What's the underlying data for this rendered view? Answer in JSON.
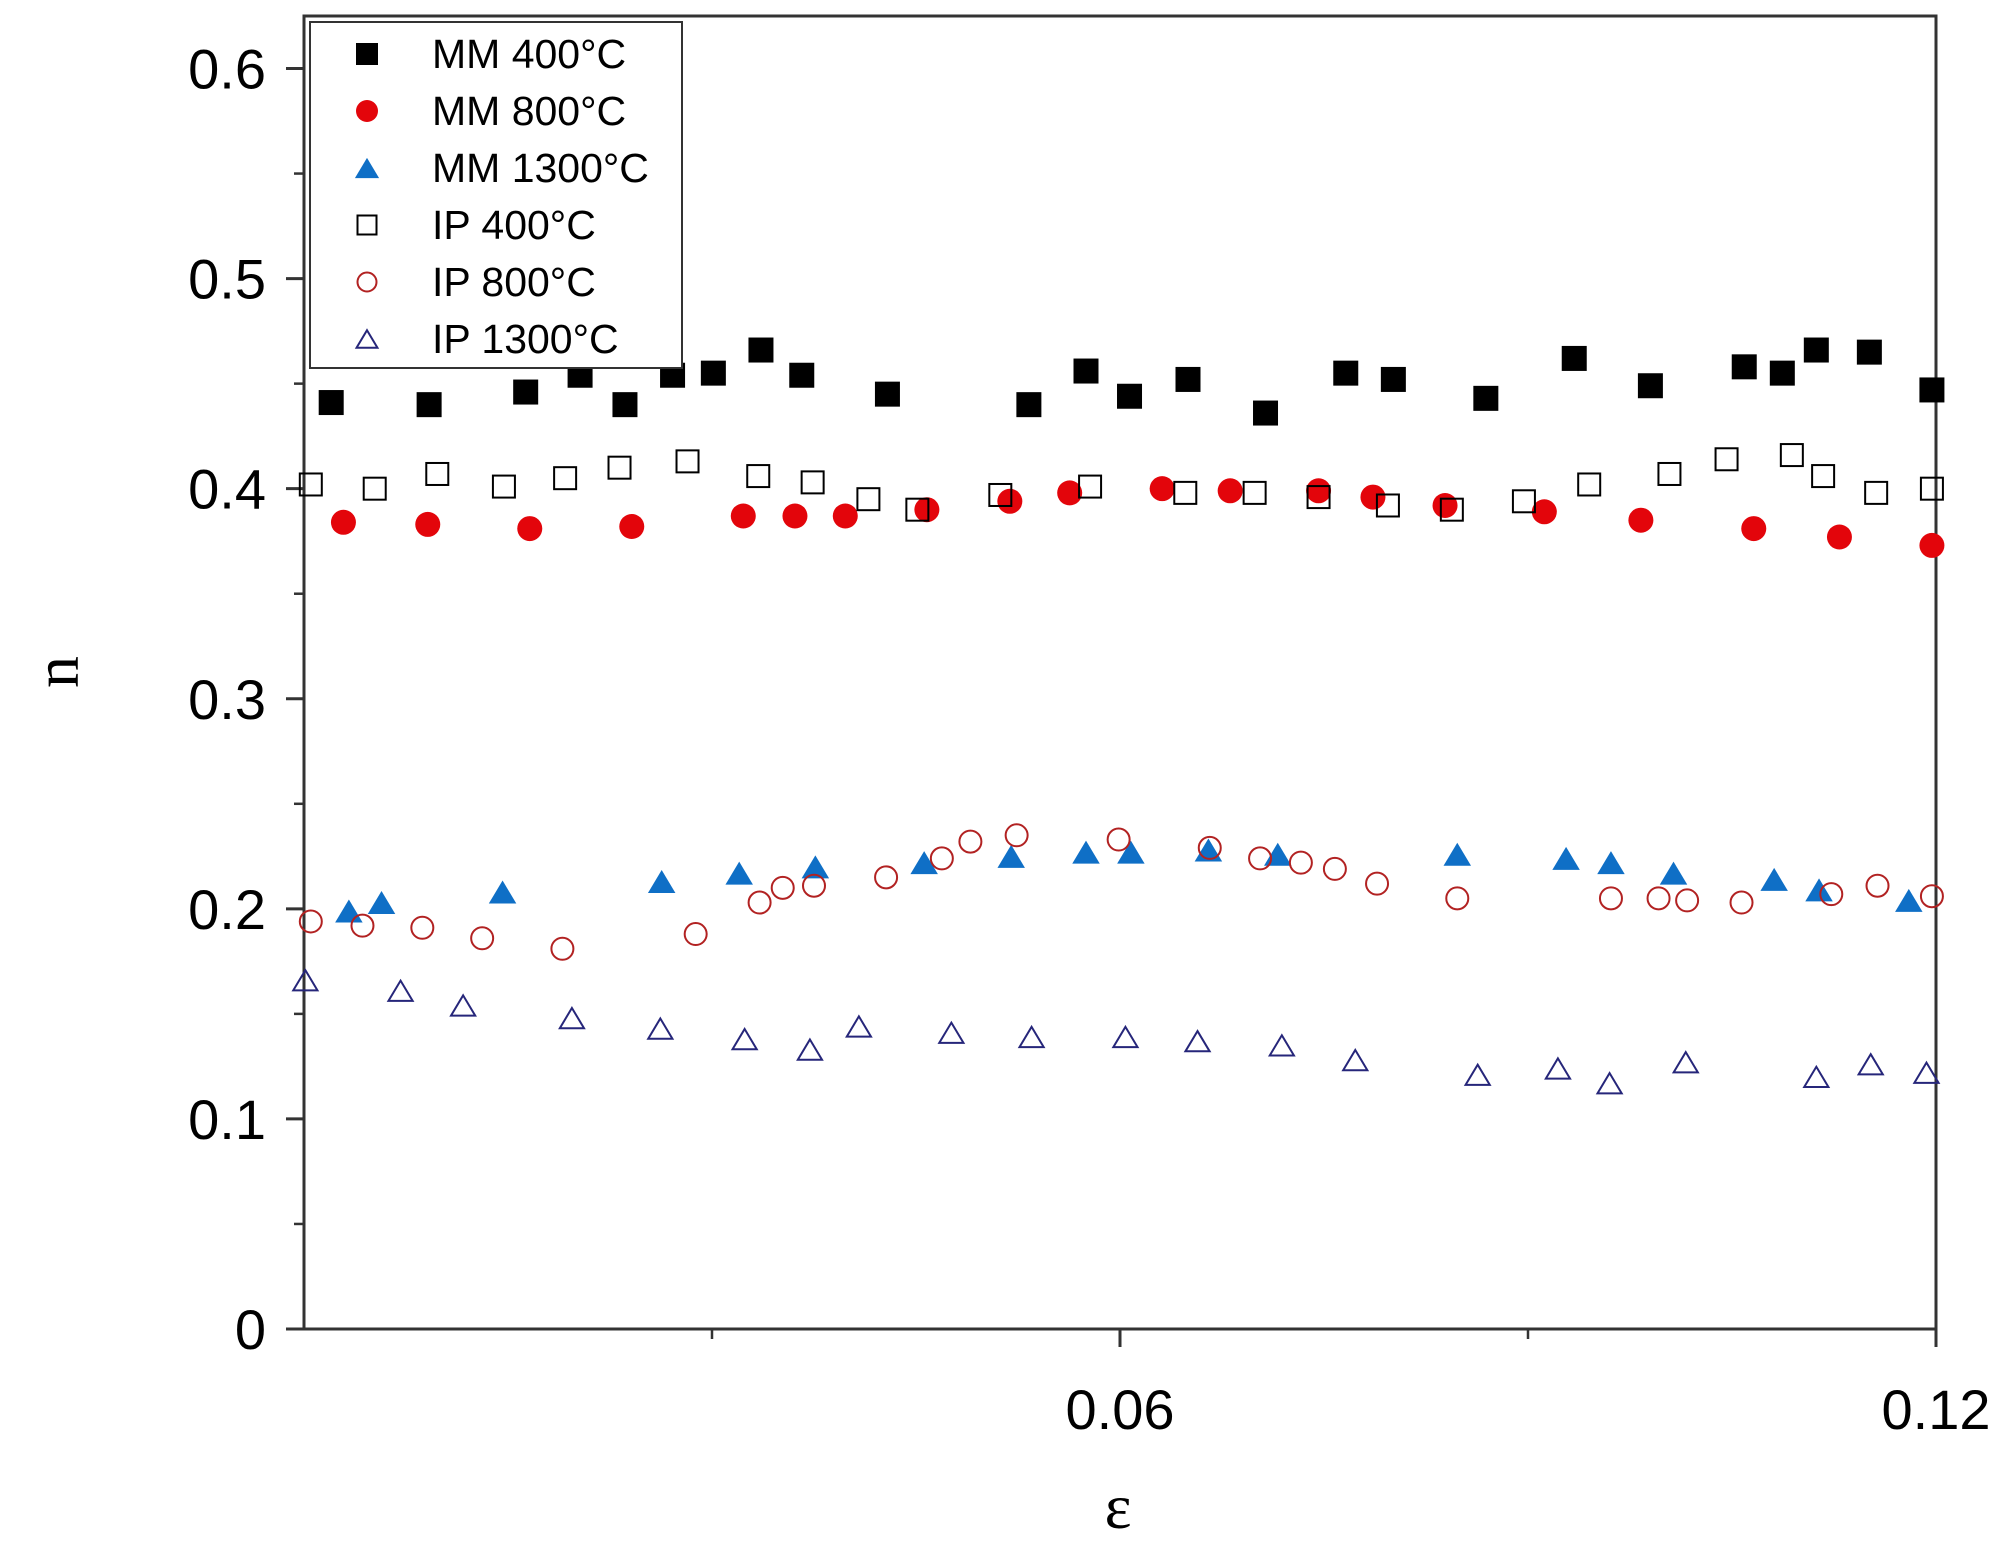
{
  "chart_data": {
    "type": "scatter",
    "title": "",
    "xlabel": "ε",
    "ylabel": "n",
    "xlim": [
      0,
      0.12
    ],
    "ylim": [
      0,
      0.625
    ],
    "x_ticks": [
      0.06,
      0.12
    ],
    "x_tick_labels": [
      "0.06",
      "0.12"
    ],
    "x_minor_ticks": [
      0.03,
      0.09
    ],
    "y_ticks": [
      0,
      0.1,
      0.2,
      0.3,
      0.4,
      0.5,
      0.6
    ],
    "y_tick_labels": [
      "0",
      "0.1",
      "0.2",
      "0.3",
      "0.4",
      "0.5",
      "0.6"
    ],
    "y_minor_ticks": [
      0.05,
      0.15,
      0.25,
      0.35,
      0.45,
      0.55
    ],
    "grid": false,
    "legend_position": "top-left",
    "series": [
      {
        "name": "MM 400°C",
        "marker": "square",
        "filled": true,
        "color": "#000000",
        "x": [
          0.002,
          0.0092,
          0.0163,
          0.0203,
          0.0236,
          0.0271,
          0.0301,
          0.0336,
          0.0366,
          0.0429,
          0.0533,
          0.0575,
          0.0607,
          0.065,
          0.0707,
          0.0766,
          0.0801,
          0.0869,
          0.0934,
          0.099,
          0.1059,
          0.1087,
          0.1112,
          0.1151,
          0.1197
        ],
        "y": [
          0.441,
          0.44,
          0.446,
          0.454,
          0.44,
          0.454,
          0.455,
          0.466,
          0.454,
          0.445,
          0.44,
          0.456,
          0.444,
          0.452,
          0.436,
          0.455,
          0.452,
          0.443,
          0.462,
          0.449,
          0.458,
          0.455,
          0.466,
          0.465,
          0.447
        ]
      },
      {
        "name": "MM 800°C",
        "marker": "circle",
        "filled": true,
        "color": "#e3050b",
        "x": [
          0.0029,
          0.0091,
          0.0166,
          0.0241,
          0.0323,
          0.0361,
          0.0398,
          0.0458,
          0.0519,
          0.0563,
          0.0631,
          0.0681,
          0.0746,
          0.0786,
          0.0839,
          0.0912,
          0.0983,
          0.1066,
          0.1129,
          0.1197
        ],
        "y": [
          0.384,
          0.383,
          0.381,
          0.382,
          0.387,
          0.387,
          0.387,
          0.39,
          0.394,
          0.398,
          0.4,
          0.399,
          0.399,
          0.396,
          0.392,
          0.389,
          0.385,
          0.381,
          0.377,
          0.373
        ]
      },
      {
        "name": "MM 1300°C",
        "marker": "triangle",
        "filled": true,
        "color": "#0f6fc6",
        "x": [
          0.0033,
          0.0057,
          0.0146,
          0.0263,
          0.032,
          0.0376,
          0.0456,
          0.052,
          0.0575,
          0.0608,
          0.0665,
          0.0716,
          0.0848,
          0.0928,
          0.0961,
          0.1007,
          0.1081,
          0.1114,
          0.118
        ],
        "y": [
          0.199,
          0.203,
          0.208,
          0.213,
          0.217,
          0.22,
          0.222,
          0.225,
          0.227,
          0.227,
          0.228,
          0.226,
          0.226,
          0.224,
          0.222,
          0.217,
          0.214,
          0.209,
          0.204
        ]
      },
      {
        "name": "IP 400°C",
        "marker": "square",
        "filled": false,
        "color": "#000000",
        "x": [
          0.0005,
          0.0052,
          0.0098,
          0.0147,
          0.0192,
          0.0232,
          0.0282,
          0.0334,
          0.0374,
          0.0415,
          0.0451,
          0.0512,
          0.0578,
          0.0648,
          0.0699,
          0.0746,
          0.0797,
          0.0844,
          0.0897,
          0.0945,
          0.1004,
          0.1046,
          0.1094,
          0.1117,
          0.1156,
          0.1197
        ],
        "y": [
          0.402,
          0.4,
          0.407,
          0.401,
          0.405,
          0.41,
          0.413,
          0.406,
          0.403,
          0.395,
          0.39,
          0.397,
          0.401,
          0.398,
          0.398,
          0.396,
          0.392,
          0.39,
          0.394,
          0.402,
          0.407,
          0.414,
          0.416,
          0.406,
          0.398,
          0.4
        ]
      },
      {
        "name": "IP 800°C",
        "marker": "circle",
        "filled": false,
        "color": "#b22222",
        "x": [
          0.0005,
          0.0043,
          0.0087,
          0.0131,
          0.019,
          0.0288,
          0.0335,
          0.0352,
          0.0375,
          0.0428,
          0.0469,
          0.049,
          0.0524,
          0.0599,
          0.0666,
          0.0703,
          0.0733,
          0.0758,
          0.0789,
          0.0848,
          0.0961,
          0.0996,
          0.1017,
          0.1057,
          0.1123,
          0.1157,
          0.1197
        ],
        "y": [
          0.194,
          0.192,
          0.191,
          0.186,
          0.181,
          0.188,
          0.203,
          0.21,
          0.211,
          0.215,
          0.224,
          0.232,
          0.235,
          0.233,
          0.229,
          0.224,
          0.222,
          0.219,
          0.212,
          0.205,
          0.205,
          0.205,
          0.204,
          0.203,
          0.207,
          0.211,
          0.206
        ]
      },
      {
        "name": "IP 1300°C",
        "marker": "triangle",
        "filled": false,
        "color": "#26267a",
        "x": [
          0.0001,
          0.0071,
          0.0117,
          0.0197,
          0.0262,
          0.0324,
          0.0372,
          0.0408,
          0.0476,
          0.0535,
          0.0604,
          0.0657,
          0.0719,
          0.0773,
          0.0863,
          0.0922,
          0.096,
          0.1016,
          0.1112,
          0.1152,
          0.1193
        ],
        "y": [
          0.166,
          0.161,
          0.154,
          0.148,
          0.143,
          0.138,
          0.133,
          0.144,
          0.141,
          0.139,
          0.139,
          0.137,
          0.135,
          0.128,
          0.121,
          0.124,
          0.117,
          0.127,
          0.12,
          0.126,
          0.122
        ]
      }
    ]
  }
}
